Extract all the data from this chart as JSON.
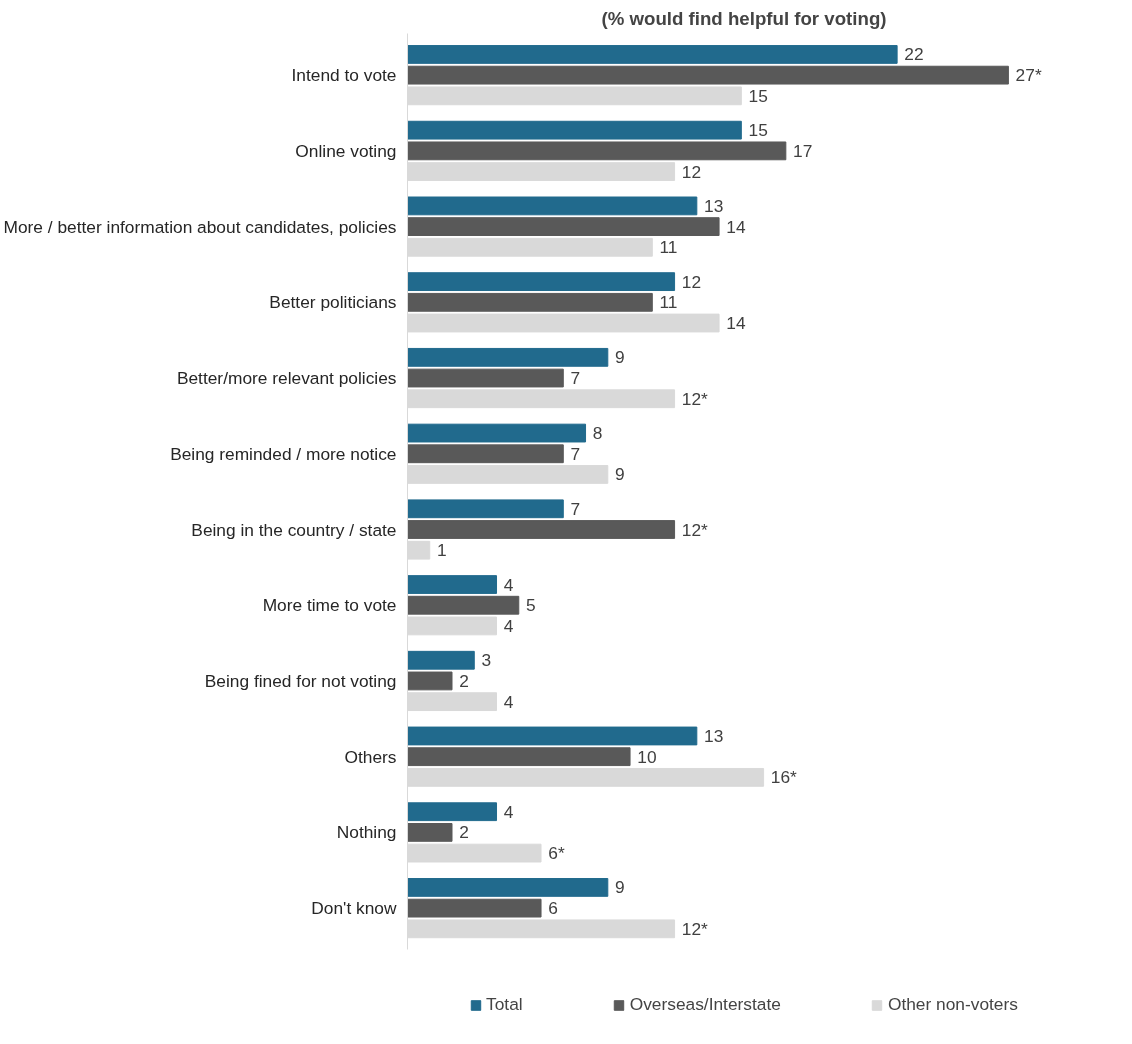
{
  "chart_data": {
    "type": "bar",
    "orientation": "horizontal",
    "title": "(% would find helpful for voting)",
    "categories": [
      "Intend to vote",
      "Online voting",
      "More / better information about candidates, policies",
      "Better politicians",
      "Better/more relevant policies",
      "Being reminded / more notice",
      "Being in the country / state",
      "More time to vote",
      "Being fined for not voting",
      "Others",
      "Nothing",
      "Don't know"
    ],
    "series": [
      {
        "name": "Total",
        "color": "#216a8d",
        "values": [
          22,
          15,
          13,
          12,
          9,
          8,
          7,
          4,
          3,
          13,
          4,
          9
        ],
        "value_labels": [
          "22",
          "15",
          "13",
          "12",
          "9",
          "8",
          "7",
          "4",
          "3",
          "13",
          "4",
          "9"
        ]
      },
      {
        "name": "Overseas/Interstate",
        "color": "#595959",
        "values": [
          27,
          17,
          14,
          11,
          7,
          7,
          12,
          5,
          2,
          10,
          2,
          6
        ],
        "value_labels": [
          "27*",
          "17",
          "14",
          "11",
          "7",
          "7",
          "12*",
          "5",
          "2",
          "10",
          "2",
          "6"
        ]
      },
      {
        "name": "Other non-voters",
        "color": "#d9d9d9",
        "values": [
          15,
          12,
          11,
          14,
          12,
          9,
          1,
          4,
          4,
          16,
          6,
          12
        ],
        "value_labels": [
          "15",
          "12",
          "11",
          "14",
          "12*",
          "9",
          "1",
          "4",
          "4",
          "16*",
          "6*",
          "12*"
        ]
      }
    ],
    "legend": "bottom",
    "grid": false
  }
}
